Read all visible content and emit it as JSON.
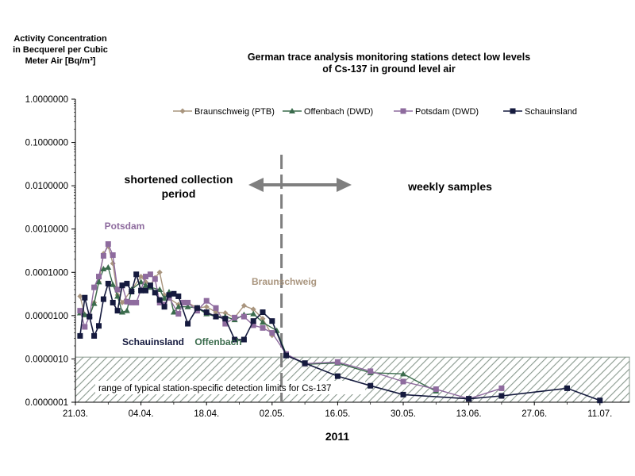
{
  "chart_data": {
    "type": "line",
    "title": "German trace analysis  monitoring stations detect low levels\nof Cs-137 in ground level air",
    "ylabel": "Activity  Concentration\nin Becquerel per Cubic\nMeter Air  [Bq/m³]",
    "xlabel": "2011",
    "yscale": "log",
    "ylim": [
      1e-07,
      1.0
    ],
    "ytick_labels": [
      "1.0000000",
      "0.1000000",
      "0.0100000",
      "0.0010000",
      "0.0001000",
      "0.0000100",
      "0.0000010",
      "0.0000001"
    ],
    "xtick_labels": [
      "21.03.",
      "04.04.",
      "18.04.",
      "02.05.",
      "16.05.",
      "30.05.",
      "13.06.",
      "27.06.",
      "11.07."
    ],
    "xlim_days_from_2011_03_21": [
      0,
      118
    ],
    "legend_position": "top",
    "series": [
      {
        "name": "Braunschweig (PTB)",
        "color": "#a9957e",
        "marker": "diamond",
        "points": [
          [
            1,
            2.8e-05
          ],
          [
            2,
            1.05e-05
          ],
          [
            3,
            9.5e-06
          ],
          [
            4,
            2e-05
          ],
          [
            5,
            6e-05
          ],
          [
            6,
            0.00027
          ],
          [
            7,
            0.0004
          ],
          [
            8,
            0.00016
          ],
          [
            9,
            3e-05
          ],
          [
            10,
            2e-05
          ],
          [
            12,
            4e-05
          ],
          [
            14,
            8e-05
          ],
          [
            15,
            6e-05
          ],
          [
            16,
            5e-05
          ],
          [
            17,
            7.5e-05
          ],
          [
            18,
            0.0001
          ],
          [
            19,
            3e-05
          ],
          [
            20,
            2.5e-05
          ],
          [
            22,
            1.8e-05
          ],
          [
            24,
            2e-05
          ],
          [
            26,
            1.5e-05
          ],
          [
            28,
            1.6e-05
          ],
          [
            30,
            1.2e-05
          ],
          [
            32,
            1.15e-05
          ],
          [
            34,
            9e-06
          ],
          [
            36,
            1.7e-05
          ],
          [
            38,
            1.4e-05
          ],
          [
            40,
            8.5e-06
          ],
          [
            42,
            3.5e-06
          ]
        ]
      },
      {
        "name": "Offenbach (DWD)",
        "color": "#3a6b4c",
        "marker": "triangle",
        "points": [
          [
            1,
            1.15e-05
          ],
          [
            2,
            1.05e-05
          ],
          [
            3,
            1e-05
          ],
          [
            4,
            1.9e-05
          ],
          [
            5,
            6e-05
          ],
          [
            6,
            0.00012
          ],
          [
            7,
            0.00013
          ],
          [
            8,
            5.2e-05
          ],
          [
            9,
            2.8e-05
          ],
          [
            10,
            1.2e-05
          ],
          [
            11,
            1.3e-05
          ],
          [
            12,
            4e-05
          ],
          [
            14,
            6e-05
          ],
          [
            15,
            5e-05
          ],
          [
            16,
            4.5e-05
          ],
          [
            18,
            4e-05
          ],
          [
            19,
            2.5e-05
          ],
          [
            20,
            3.5e-05
          ],
          [
            21,
            1.2e-05
          ],
          [
            22,
            1.6e-05
          ],
          [
            24,
            1.6e-05
          ],
          [
            26,
            1.5e-05
          ],
          [
            28,
            1.1e-05
          ],
          [
            30,
            9.5e-06
          ],
          [
            32,
            9.5e-06
          ],
          [
            34,
            8e-06
          ],
          [
            36,
            1.05e-05
          ],
          [
            38,
            1.1e-05
          ],
          [
            40,
            7e-06
          ],
          [
            43,
            4.5e-06
          ],
          [
            45,
            1.3e-06
          ],
          [
            49,
            7.5e-07
          ],
          [
            56,
            8e-07
          ],
          [
            63,
            4.8e-07
          ],
          [
            70,
            4.5e-07
          ],
          [
            77,
            1.8e-07
          ]
        ]
      },
      {
        "name": "Potsdam (DWD)",
        "color": "#8e6b9e",
        "marker": "square",
        "points": [
          [
            1,
            1.3e-05
          ],
          [
            2,
            5.5e-06
          ],
          [
            3,
            9.5e-06
          ],
          [
            4,
            4.5e-05
          ],
          [
            5,
            8e-05
          ],
          [
            6,
            0.00024
          ],
          [
            7,
            0.00045
          ],
          [
            8,
            0.00025
          ],
          [
            9,
            4e-05
          ],
          [
            10,
            5e-05
          ],
          [
            11,
            2.1e-05
          ],
          [
            12,
            2e-05
          ],
          [
            13,
            2e-05
          ],
          [
            15,
            8e-05
          ],
          [
            16,
            9e-05
          ],
          [
            17,
            7e-05
          ],
          [
            18,
            2e-05
          ],
          [
            19,
            1.8e-05
          ],
          [
            20,
            2.6e-05
          ],
          [
            22,
            1.1e-05
          ],
          [
            23,
            2e-05
          ],
          [
            24,
            2e-05
          ],
          [
            26,
            1.3e-05
          ],
          [
            28,
            2.2e-05
          ],
          [
            30,
            1.5e-05
          ],
          [
            32,
            6.5e-06
          ],
          [
            34,
            9e-06
          ],
          [
            36,
            9.5e-06
          ],
          [
            38,
            6e-06
          ],
          [
            40,
            5.2e-06
          ],
          [
            42,
            4e-06
          ],
          [
            45,
            1.3e-06
          ],
          [
            49,
            7.8e-07
          ],
          [
            56,
            8.5e-07
          ],
          [
            63,
            5.2e-07
          ],
          [
            70,
            3e-07
          ],
          [
            77,
            2e-07
          ],
          [
            84,
            1.2e-07
          ],
          [
            91,
            2.1e-07
          ]
        ]
      },
      {
        "name": "Schauinsland",
        "color": "#151a3e",
        "marker": "square",
        "points": [
          [
            1,
            3.4e-06
          ],
          [
            2,
            2.6e-05
          ],
          [
            3,
            9.5e-06
          ],
          [
            4,
            3.4e-06
          ],
          [
            5,
            5.8e-06
          ],
          [
            6,
            2.4e-05
          ],
          [
            7,
            5.5e-05
          ],
          [
            8,
            2e-05
          ],
          [
            9,
            1.3e-05
          ],
          [
            10,
            5e-05
          ],
          [
            11,
            5.5e-05
          ],
          [
            12,
            3.6e-05
          ],
          [
            13,
            9e-05
          ],
          [
            14,
            3.8e-05
          ],
          [
            15,
            3.8e-05
          ],
          [
            16,
            5e-05
          ],
          [
            17,
            3.4e-05
          ],
          [
            18,
            2.3e-05
          ],
          [
            19,
            1.6e-05
          ],
          [
            20,
            3e-05
          ],
          [
            21,
            3.2e-05
          ],
          [
            22,
            2.8e-05
          ],
          [
            24,
            6.5e-06
          ],
          [
            26,
            1.5e-05
          ],
          [
            28,
            1.2e-05
          ],
          [
            30,
            9.5e-06
          ],
          [
            32,
            8.5e-06
          ],
          [
            34,
            2.8e-06
          ],
          [
            36,
            2.8e-06
          ],
          [
            38,
            7.5e-06
          ],
          [
            40,
            1.2e-05
          ],
          [
            42,
            7.5e-06
          ],
          [
            45,
            1.2e-06
          ],
          [
            49,
            8e-07
          ],
          [
            56,
            4e-07
          ],
          [
            63,
            2.4e-07
          ],
          [
            70,
            1.5e-07
          ],
          [
            84,
            1.2e-07
          ],
          [
            91,
            1.4e-07
          ],
          [
            105,
            2.1e-07
          ],
          [
            112,
            1.1e-07
          ]
        ]
      }
    ],
    "annotations": {
      "left_region": "shortened collection\nperiod",
      "right_region": "weekly samples",
      "detection_band": "range of typical station-specific detection limits for Cs-137",
      "label_potsdam": "Potsdam",
      "label_braunschweig": "Braunschweig",
      "label_schauinsland": "Schauinsland",
      "label_offenbach": "Offenbach"
    },
    "divider_day": 44,
    "detection_band_range": [
      1e-07,
      1.1e-06
    ]
  }
}
